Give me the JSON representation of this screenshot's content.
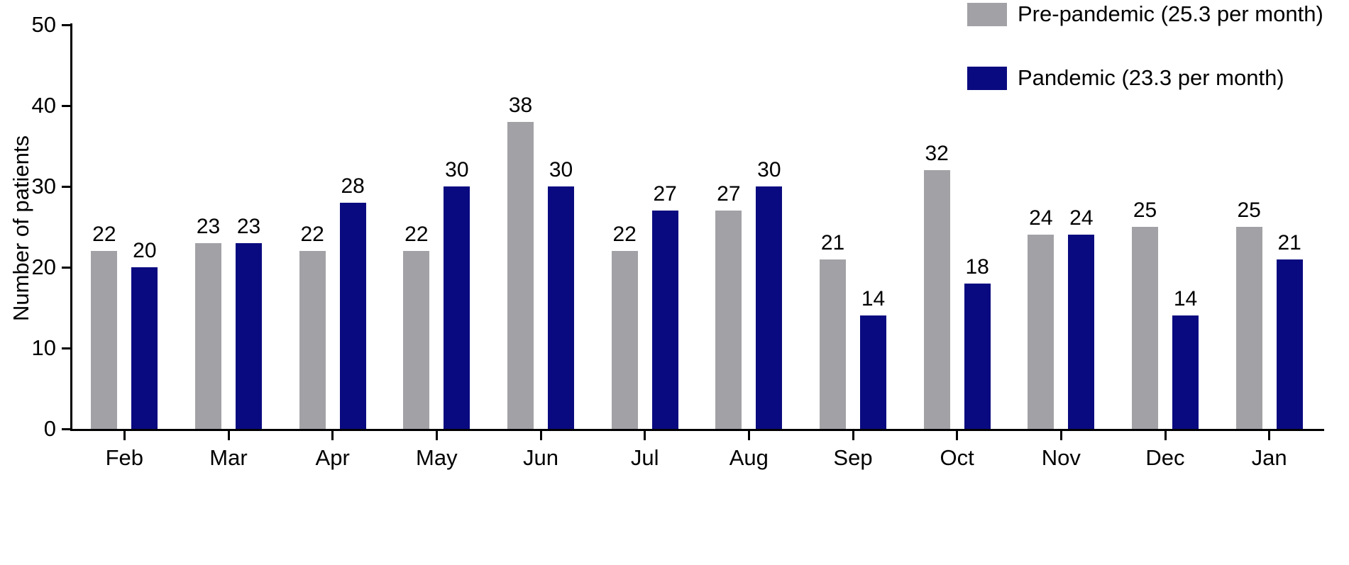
{
  "chart_data": {
    "type": "bar",
    "title": "",
    "xlabel": "",
    "ylabel": "Number of patients",
    "ylim": [
      0,
      50
    ],
    "yticks": [
      0,
      10,
      20,
      30,
      40,
      50
    ],
    "grid": false,
    "legend_position": "top-right",
    "bar_labels": true,
    "categories": [
      "Feb",
      "Mar",
      "Apr",
      "May",
      "Jun",
      "Jul",
      "Aug",
      "Sep",
      "Oct",
      "Nov",
      "Dec",
      "Jan"
    ],
    "series": [
      {
        "name": "Pre-pandemic (25.3 per month)",
        "color": "#a2a2a6",
        "values": [
          22,
          23,
          22,
          22,
          38,
          22,
          27,
          21,
          32,
          24,
          25,
          25
        ]
      },
      {
        "name": "Pandemic (23.3 per month)",
        "color": "#0a0a80",
        "values": [
          20,
          23,
          28,
          30,
          30,
          27,
          30,
          14,
          18,
          24,
          14,
          21
        ]
      }
    ]
  }
}
